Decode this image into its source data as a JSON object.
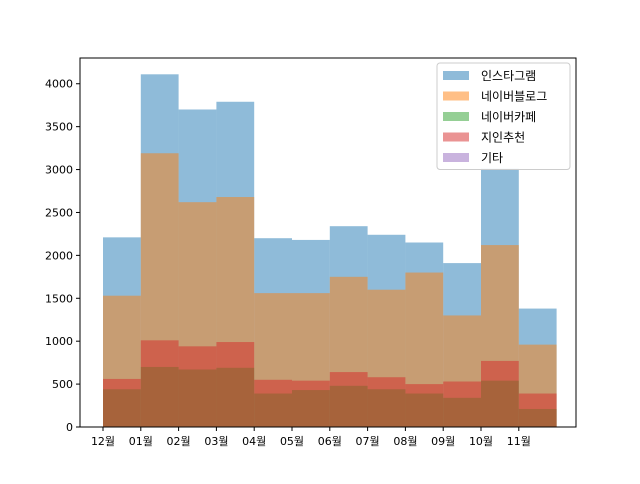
{
  "chart_data": {
    "type": "bar",
    "style": "overlapping-histogram",
    "title": "",
    "xlabel": "",
    "ylabel": "",
    "categories": [
      "12월",
      "01월",
      "02월",
      "03월",
      "04월",
      "05월",
      "06월",
      "07월",
      "08월",
      "09월",
      "10월",
      "11월"
    ],
    "series": [
      {
        "name": "인스타그램",
        "color": "#1f77b4",
        "values": [
          2210,
          4110,
          3700,
          3790,
          2200,
          2180,
          2340,
          2240,
          2150,
          1910,
          3010,
          1380
        ]
      },
      {
        "name": "네이버블로그",
        "color": "#ff7f0e",
        "values": [
          1530,
          3190,
          2620,
          2680,
          1560,
          1560,
          1750,
          1600,
          1800,
          1300,
          2120,
          960
        ]
      },
      {
        "name": "네이버카페",
        "color": "#2ca02c",
        "values": [
          440,
          700,
          670,
          690,
          390,
          430,
          480,
          440,
          390,
          340,
          540,
          210
        ]
      },
      {
        "name": "지인추천",
        "color": "#d62728",
        "values": [
          560,
          1010,
          940,
          990,
          550,
          540,
          640,
          580,
          500,
          530,
          770,
          390
        ]
      },
      {
        "name": "기타",
        "color": "#9467bd",
        "values": [
          0,
          0,
          0,
          0,
          0,
          0,
          0,
          0,
          0,
          0,
          0,
          0
        ]
      }
    ],
    "ylim": [
      0,
      4300
    ],
    "yticks": [
      0,
      500,
      1000,
      1500,
      2000,
      2500,
      3000,
      3500,
      4000
    ],
    "series_alpha": 0.5,
    "grid": false,
    "legend_position": "top-right"
  }
}
